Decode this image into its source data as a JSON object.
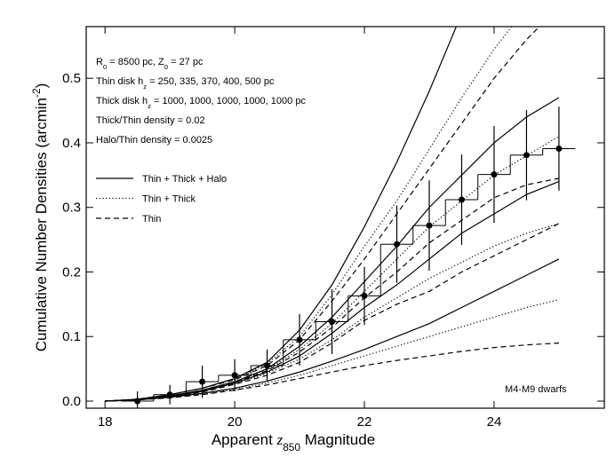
{
  "chart_data": {
    "type": "line",
    "xlabel": [
      {
        "t": "Apparent "
      },
      {
        "t": "z",
        "italic": true
      },
      {
        "t": "850",
        "sub": true
      },
      {
        "t": " Magnitude"
      }
    ],
    "ylabel": [
      {
        "t": "Cumulative Number Densities (arcmin"
      },
      {
        "t": "-2",
        "sup": true
      },
      {
        "t": ")"
      }
    ],
    "xlim": [
      17.71,
      25.7
    ],
    "ylim": [
      -0.011,
      0.58
    ],
    "xticks": [
      18,
      20,
      22,
      24
    ],
    "yticks": [
      {
        "value": 0,
        "label": "0.0"
      },
      0.1,
      0.2,
      0.3,
      0.4,
      0.5
    ],
    "x": [
      18,
      18.5,
      19,
      19.5,
      20,
      20.5,
      21,
      21.5,
      22,
      22.5,
      23,
      23.5,
      24,
      24.5,
      25
    ],
    "series": [
      {
        "style": "solid",
        "values": [
          0,
          0.003,
          0.01,
          0.02,
          0.035,
          0.06,
          0.11,
          0.18,
          0.27,
          0.37,
          0.48,
          0.6,
          null,
          null,
          null
        ]
      },
      {
        "style": "dotted",
        "values": [
          0,
          0.003,
          0.01,
          0.02,
          0.034,
          0.058,
          0.1,
          0.165,
          0.24,
          0.31,
          0.39,
          0.47,
          0.545,
          0.61,
          null
        ]
      },
      {
        "style": "dashed",
        "values": [
          0,
          0.003,
          0.01,
          0.02,
          0.033,
          0.055,
          0.095,
          0.155,
          0.22,
          0.29,
          0.36,
          0.43,
          0.5,
          0.56,
          0.61
        ]
      },
      {
        "style": "solid",
        "values": [
          0,
          0.002,
          0.008,
          0.017,
          0.03,
          0.05,
          0.085,
          0.13,
          0.185,
          0.24,
          0.3,
          0.35,
          0.4,
          0.44,
          0.47
        ]
      },
      {
        "style": "dotted",
        "values": [
          0,
          0.002,
          0.008,
          0.017,
          0.03,
          0.049,
          0.08,
          0.12,
          0.17,
          0.22,
          0.27,
          0.31,
          0.35,
          0.38,
          0.41
        ]
      },
      {
        "style": "dashed",
        "values": [
          0,
          0.002,
          0.008,
          0.016,
          0.029,
          0.047,
          0.076,
          0.114,
          0.16,
          0.2,
          0.245,
          0.28,
          0.315,
          0.335,
          0.345
        ]
      },
      {
        "style": "solid",
        "values": [
          0,
          0.002,
          0.007,
          0.015,
          0.028,
          0.045,
          0.07,
          0.105,
          0.145,
          0.18,
          0.22,
          0.26,
          0.29,
          0.32,
          0.34
        ]
      },
      {
        "style": "dotted",
        "values": [
          0,
          0.002,
          0.007,
          0.015,
          0.027,
          0.043,
          0.065,
          0.095,
          0.13,
          0.16,
          0.19,
          0.215,
          0.24,
          0.26,
          0.275
        ]
      },
      {
        "style": "dashed",
        "values": [
          0,
          0.002,
          0.007,
          0.014,
          0.026,
          0.04,
          0.06,
          0.09,
          0.125,
          0.15,
          0.17,
          0.2,
          0.225,
          0.25,
          0.275
        ]
      },
      {
        "style": "solid",
        "values": [
          0,
          0.002,
          0.006,
          0.012,
          0.02,
          0.031,
          0.045,
          0.062,
          0.08,
          0.1,
          0.12,
          0.145,
          0.17,
          0.195,
          0.22
        ]
      },
      {
        "style": "dotted",
        "values": [
          0,
          0.002,
          0.006,
          0.011,
          0.018,
          0.028,
          0.04,
          0.055,
          0.07,
          0.085,
          0.1,
          0.115,
          0.13,
          0.145,
          0.157
        ]
      },
      {
        "style": "dashed",
        "values": [
          0,
          0.002,
          0.005,
          0.01,
          0.017,
          0.025,
          0.035,
          0.045,
          0.055,
          0.063,
          0.07,
          0.077,
          0.083,
          0.087,
          0.09
        ]
      }
    ],
    "points": {
      "x": [
        18.5,
        19,
        19.5,
        20,
        20.5,
        21,
        21.5,
        22,
        22.5,
        23,
        23.5,
        24,
        24.5,
        25
      ],
      "values": [
        0,
        0.01,
        0.03,
        0.04,
        0.055,
        0.095,
        0.123,
        0.163,
        0.243,
        0.272,
        0.312,
        0.351,
        0.381,
        0.391
      ],
      "errors": [
        0.015,
        0.015,
        0.025,
        0.025,
        0.025,
        0.04,
        0.05,
        0.045,
        0.06,
        0.07,
        0.07,
        0.075,
        0.07,
        0.065
      ],
      "bins": [
        18.25,
        18.75,
        19.25,
        19.75,
        20.25,
        20.75,
        21.25,
        21.75,
        22.25,
        22.75,
        23.25,
        23.75,
        24.25,
        24.75,
        25.25
      ]
    },
    "annotations": [
      [
        {
          "t": "R"
        },
        {
          "t": "0",
          "sub": true
        },
        {
          "t": " = 8500 pc, Z"
        },
        {
          "t": "0",
          "sub": true
        },
        {
          "t": " = 27 pc"
        }
      ],
      [
        {
          "t": "Thin disk h"
        },
        {
          "t": "z",
          "sub": true
        },
        {
          "t": " = 250, 335, 370, 400, 500 pc"
        }
      ],
      [
        {
          "t": "Thick disk h"
        },
        {
          "t": "z",
          "sub": true
        },
        {
          "t": " = 1000, 1000, 1000, 1000, 1000 pc"
        }
      ],
      [
        {
          "t": "Thick/Thin density = 0.02"
        }
      ],
      [
        {
          "t": "Halo/Thin density = 0.0025"
        }
      ]
    ],
    "legend": [
      {
        "label": "Thin + Thick + Halo",
        "style": "solid"
      },
      {
        "label": "Thin + Thick",
        "style": "dotted"
      },
      {
        "label": "Thin",
        "style": "dashed"
      }
    ],
    "note": "M4-M9 dwarfs"
  }
}
